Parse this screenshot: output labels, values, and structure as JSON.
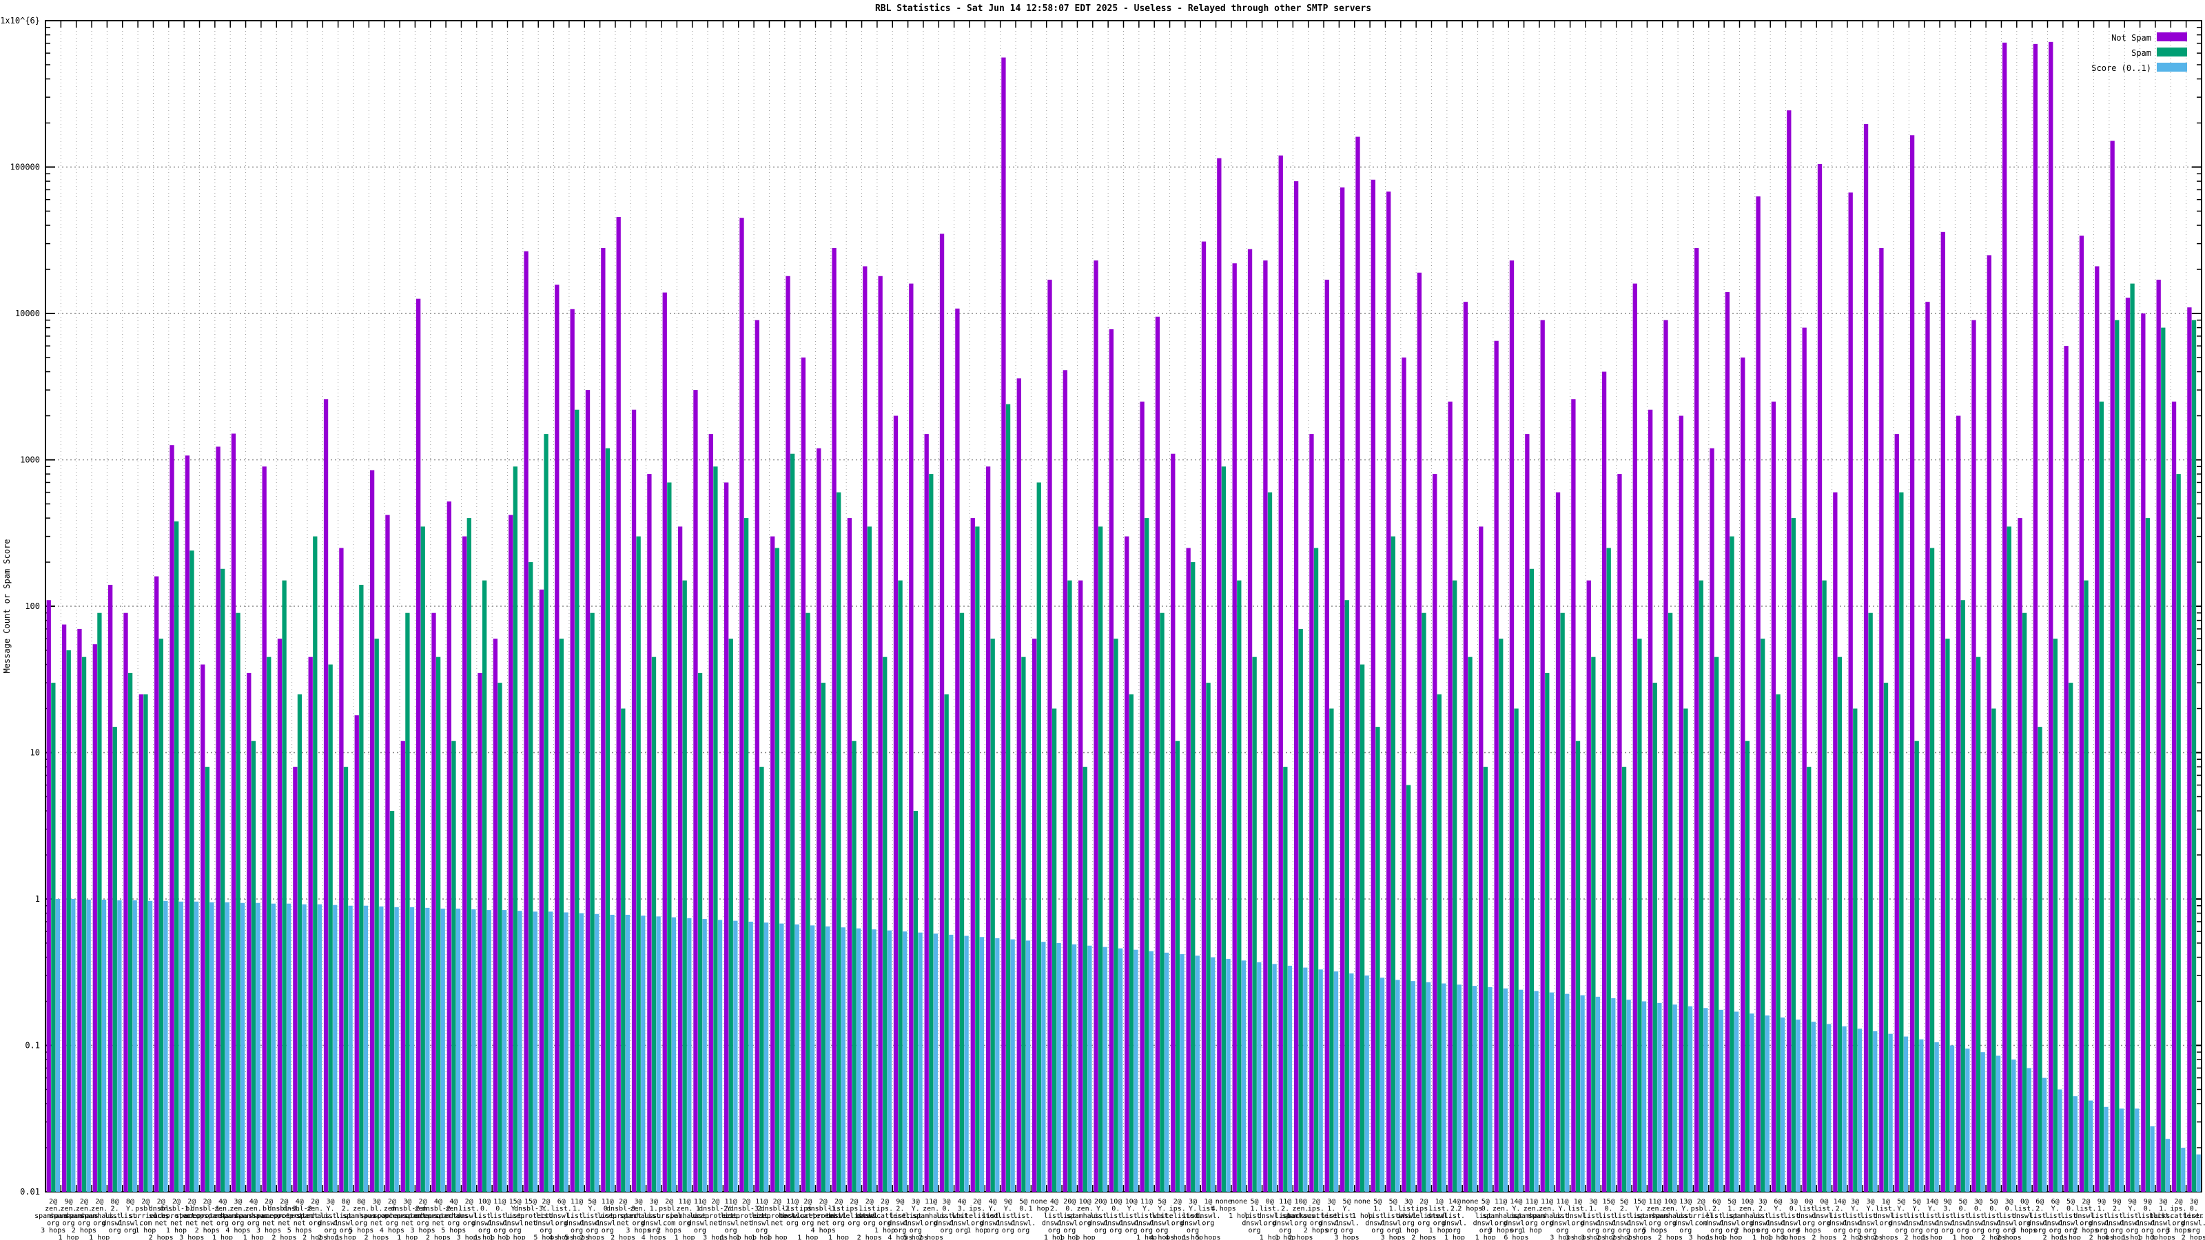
{
  "title": "RBL Statistics - Sat Jun 14 12:58:07 EDT 2025 - Useless - Relayed through other SMTP servers",
  "y_axis": {
    "label": "Message Count or Spam Score",
    "scale": "log",
    "min": 0.01,
    "max": 1000000,
    "tick_labels": [
      "1x10^{6}",
      "100000",
      "10000",
      "1000",
      "100",
      "10",
      "1",
      "0.1",
      "0.01"
    ]
  },
  "legend": {
    "position": "top-right",
    "items": [
      {
        "label": "Not Spam",
        "color": "#9400D3"
      },
      {
        "label": "Spam",
        "color": "#009E73"
      },
      {
        "label": "Score (0..1)",
        "color": "#56B4E9"
      }
    ]
  },
  "chart_data": {
    "type": "bar",
    "scale": "log",
    "ylim": [
      0.01,
      1000000
    ],
    "grid": true,
    "groups": [
      [
        "2@",
        "zen.spamhaus.org",
        "3 hops"
      ],
      [
        "9@",
        "zen.spamhaus.org",
        "1 hop"
      ],
      [
        "2@",
        "zen.spamhaus.org",
        "2 hops"
      ],
      [
        "2@",
        "zen.spamhaus.org",
        "1 hop"
      ],
      [
        "8@",
        "2.list.dnswl.org",
        ""
      ],
      [
        "8@",
        "Y.list.dnswl.org",
        ""
      ],
      [
        "2@",
        "psbl.surriel.com",
        "1 hop"
      ],
      [
        "2@",
        "dnsbl.sorbs.net",
        "2 hops"
      ],
      [
        "2@",
        "dnsbl-1.uceprotect.net",
        "1 hop"
      ],
      [
        "2@",
        "bl.spamcop.net",
        "3 hops"
      ],
      [
        "2@",
        "dnsbl-1.uceprotect.net",
        "2 hops"
      ],
      [
        "4@",
        "zen.spamhaus.org",
        "1 hop"
      ],
      [
        "3@",
        "zen.spamhaus.org",
        "4 hops"
      ],
      [
        "4@",
        "zen.spamhaus.org",
        "1 hop"
      ],
      [
        "2@",
        "bl.spamcop.net",
        "3 hops"
      ],
      [
        "2@",
        "dnsbl-3.uceprotect.net",
        "2 hops"
      ],
      [
        "4@",
        "dnsbl-2.uceprotect.net",
        "5 hops"
      ],
      [
        "2@",
        "zen.spamhaus.org",
        "2 hops"
      ],
      [
        "3@",
        "Y.list.dnswl.org",
        "2 hops"
      ],
      [
        "8@",
        "2.list.dnswl.org",
        "1 hop"
      ],
      [
        "8@",
        "zen.spamhaus.org",
        "5 hops"
      ],
      [
        "3@",
        "bl.spamcop.net",
        "2 hops"
      ],
      [
        "2@",
        "zen.spamhaus.org",
        "4 hops"
      ],
      [
        "3@",
        "dnsbl-2.uceprotect.net",
        "1 hop"
      ],
      [
        "2@",
        "zen.spamhaus.org",
        "3 hops"
      ],
      [
        "4@",
        "dnsbl-2.uceprotect.net",
        "2 hops"
      ],
      [
        "4@",
        "zen.spamhaus.org",
        "5 hops"
      ],
      [
        "2@",
        "list.dnswl.org",
        "3 hops"
      ],
      [
        "10@",
        "0.list.dnswl.org",
        "1 hop"
      ],
      [
        "11@",
        "0.list.dnswl.org",
        "1 hop"
      ],
      [
        "15@",
        "Y.list.dnswl.org",
        "1 hop"
      ],
      [
        "15@",
        "dnsbl-3.uceprotect.net",
        ""
      ],
      [
        "2@",
        "Y.list.dnswl.org",
        "5 hops"
      ],
      [
        "6@",
        "list.dnswl.org",
        "4 hops"
      ],
      [
        "11@",
        "1.list.dnswl.org",
        "5 hops"
      ],
      [
        "5@",
        "Y.list.dnswl.org",
        "2 hops"
      ],
      [
        "11@",
        "0.list.dnswl.org",
        ""
      ],
      [
        "2@",
        "dnsbl-3.uceprotect.net",
        "2 hops"
      ],
      [
        "3@",
        "zen.spamhaus.org",
        "3 hops"
      ],
      [
        "3@",
        "1.list.dnswl.org",
        "4 hops"
      ],
      [
        "2@",
        "psbl.surriel.com",
        "2 hops"
      ],
      [
        "11@",
        "zen.spamhaus.org",
        "1 hop"
      ],
      [
        "11@",
        "1.list.dnswl.org",
        ""
      ],
      [
        "2@",
        "dnsbl-2.uceprotect.net",
        "3 hops"
      ],
      [
        "11@",
        "Y.list.dnswl.org",
        "1 hop"
      ],
      [
        "2@",
        "dnsbl-3.uceprotect.net",
        "1 hop"
      ],
      [
        "11@",
        "2.list.dnswl.org",
        "1 hop"
      ],
      [
        "2@",
        "dnsbl-2.uceprotect.net",
        "1 hop"
      ],
      [
        "11@",
        "list.dnswl.org",
        ""
      ],
      [
        "2@",
        "ips.backscatterer.org",
        "1 hop"
      ],
      [
        "2@",
        "dnsbl-1.uceprotect.net",
        "4 hops"
      ],
      [
        "2@",
        "list.dnswl.org",
        "1 hop"
      ],
      [
        "2@",
        "ips.whitelisted.org",
        ""
      ],
      [
        "2@",
        "list.dnswl.org",
        "2 hops"
      ],
      [
        "2@",
        "ips.backscatterer.org",
        "1 hop"
      ],
      [
        "9@",
        "2.list.dnswl.org",
        "4 hops"
      ],
      [
        "3@",
        "Y.list.dnswl.org",
        "5 hops"
      ],
      [
        "11@",
        "zen.spamhaus.org",
        "2 hops"
      ],
      [
        "3@",
        "0.list.dnswl.org",
        ""
      ],
      [
        "4@",
        "3.list.dnswl.org",
        ""
      ],
      [
        "2@",
        "ips.whitelisted.org",
        "1 hop"
      ],
      [
        "4@",
        "Y.list.dnswl.org",
        ""
      ],
      [
        "9@",
        "Y.list.dnswl.org",
        ""
      ],
      [
        "5@",
        "0.list.dnswl.org",
        ""
      ],
      [
        "none",
        "",
        "1 hop"
      ],
      [
        "4@",
        "2.list.dnswl.org",
        "1 hop"
      ],
      [
        "20@",
        "0.list.dnswl.org",
        "1 hop"
      ],
      [
        "10@",
        "zen.spamhaus.org",
        "1 hop"
      ],
      [
        "20@",
        "Y.list.dnswl.org",
        ""
      ],
      [
        "10@",
        "0.list.dnswl.org",
        ""
      ],
      [
        "10@",
        "Y.list.dnswl.org",
        ""
      ],
      [
        "11@",
        "Y.list.dnswl.org",
        "1 hop"
      ],
      [
        "5@",
        "Y.list.dnswl.org",
        "4 hops"
      ],
      [
        "2@",
        "ips.whitelisted.org",
        "4 hops"
      ],
      [
        "3@",
        "Y.list.dnswl.org",
        "1 hop"
      ],
      [
        "1@",
        "list.dnswl.org",
        "5 hops"
      ],
      [
        "none",
        "",
        "4 hops"
      ],
      [
        "none",
        "",
        "1 hop"
      ],
      [
        "5@",
        "1.list.dnswl.org",
        ""
      ],
      [
        "0@",
        "list.dnswl.org",
        "1 hop"
      ],
      [
        "11@",
        "2.list.dnswl.org",
        "1 hop"
      ],
      [
        "10@",
        "zen.spamhaus.org",
        "2 hops"
      ],
      [
        "2@",
        "ips.backscatterer.org",
        "2 hops"
      ],
      [
        "3@",
        "1.list.dnswl.org",
        ""
      ],
      [
        "5@",
        "Y.list.dnswl.org",
        "3 hops"
      ],
      [
        "none",
        "",
        "1 hop"
      ],
      [
        "5@",
        "1.list.dnswl.org",
        ""
      ],
      [
        "5@",
        "1.list.dnswl.org",
        "3 hops"
      ],
      [
        "3@",
        "list.dnswl.org",
        "1 hop"
      ],
      [
        "2@",
        "ips.whitelisted.org",
        "2 hops"
      ],
      [
        "1@",
        "list.dnswl.org",
        "1 hop"
      ],
      [
        "14@",
        "2.list.dnswl.org",
        "1 hop"
      ],
      [
        "none",
        "",
        "2 hops"
      ],
      [
        "5@",
        "0.list.dnswl.org",
        "1 hop"
      ],
      [
        "11@",
        "zen.spamhaus.org",
        "3 hops"
      ],
      [
        "14@",
        "Y.list.dnswl.org",
        "6 hops"
      ],
      [
        "11@",
        "zen.spamhaus.org",
        "1 hop"
      ],
      [
        "11@",
        "zen.spamhaus.org",
        ""
      ],
      [
        "11@",
        "Y.list.dnswl.org",
        "3 hops"
      ],
      [
        "1@",
        "list.dnswl.org",
        "3 hops"
      ],
      [
        "3@",
        "1.list.dnswl.org",
        "3 hops"
      ],
      [
        "15@",
        "0.list.dnswl.org",
        "2 hops"
      ],
      [
        "5@",
        "2.list.dnswl.org",
        "2 hops"
      ],
      [
        "15@",
        "Y.list.dnswl.org",
        "2 hops"
      ],
      [
        "11@",
        "zen.spamhaus.org",
        "5 hops"
      ],
      [
        "10@",
        "zen.spamhaus.org",
        "2 hops"
      ],
      [
        "13@",
        "Y.list.dnswl.org",
        ""
      ],
      [
        "2@",
        "psbl.surriel.com",
        "3 hops"
      ],
      [
        "6@",
        "2.list.dnswl.org",
        "1 hop"
      ],
      [
        "5@",
        "1.list.dnswl.org",
        "1 hop"
      ],
      [
        "10@",
        "zen.spamhaus.org",
        "2 hops"
      ],
      [
        "3@",
        "2.list.dnswl.org",
        "1 hop"
      ],
      [
        "6@",
        "Y.list.dnswl.org",
        "1 hop"
      ],
      [
        "3@",
        "0.list.dnswl.org",
        "3 hops"
      ],
      [
        "0@",
        "list.dnswl.org",
        "4 hops"
      ],
      [
        "0@",
        "list.dnswl.org",
        "2 hops"
      ],
      [
        "14@",
        "2.list.dnswl.org",
        ""
      ],
      [
        "3@",
        "Y.list.dnswl.org",
        "2 hops"
      ],
      [
        "3@",
        "Y.list.dnswl.org",
        "2 hops"
      ],
      [
        "1@",
        "list.dnswl.org",
        "2 hops"
      ],
      [
        "5@",
        "Y.list.dnswl.org",
        ""
      ],
      [
        "5@",
        "Y.list.dnswl.org",
        "2 hops"
      ],
      [
        "14@",
        "Y.list.dnswl.org",
        "1 hop"
      ],
      [
        "9@",
        "3.list.dnswl.org",
        ""
      ],
      [
        "5@",
        "0.list.dnswl.org",
        "1 hop"
      ],
      [
        "3@",
        "0.list.dnswl.org",
        ""
      ],
      [
        "5@",
        "0.list.dnswl.org",
        "2 hops"
      ],
      [
        "3@",
        "0.list.dnswl.org",
        "2 hops"
      ],
      [
        "0@",
        "list.dnswl.org",
        "3 hops"
      ],
      [
        "6@",
        "2.list.dnswl.org",
        ""
      ],
      [
        "6@",
        "Y.list.dnswl.org",
        "2 hops"
      ],
      [
        "5@",
        "0.list.dnswl.org",
        "1 hop"
      ],
      [
        "2@",
        "list.dnswl.org",
        "2 hops"
      ],
      [
        "9@",
        "1.list.dnswl.org",
        "2 hops"
      ],
      [
        "9@",
        "2.list.dnswl.org",
        "4 hops"
      ],
      [
        "9@",
        "Y.list.dnswl.org",
        "1 hop"
      ],
      [
        "9@",
        "0.list.dnswl.org",
        "1 hop"
      ],
      [
        "3@",
        "1.list.dnswl.org",
        "3 hops"
      ],
      [
        "2@",
        "ips.backscatterer.org",
        "3 hops"
      ],
      [
        "3@",
        "0.list.dnswl.org",
        "2 hops"
      ]
    ],
    "series": [
      {
        "name": "Not Spam",
        "color": "#9400D3",
        "values": [
          110,
          75,
          70,
          55,
          140,
          90,
          25,
          160,
          1260,
          1070,
          40,
          1230,
          1510,
          35,
          900,
          60,
          8,
          45,
          2600,
          250,
          18,
          850,
          420,
          12,
          12600,
          90,
          520,
          300,
          35,
          60,
          420,
          26600,
          130,
          15700,
          10700,
          3000,
          28000,
          45600,
          2200,
          800,
          13900,
          350,
          3000,
          1500,
          700,
          45000,
          9000,
          300,
          18000,
          5000,
          1200,
          28000,
          400,
          21000,
          18000,
          2000,
          16000,
          1500,
          35000,
          10800,
          400,
          900,
          560000,
          3600,
          60,
          17000,
          4100,
          150,
          23000,
          7800,
          300,
          2500,
          9500,
          1100,
          250,
          31000,
          115000,
          22000,
          27500,
          23000,
          120000,
          80000,
          1500,
          17000,
          72500,
          161000,
          82000,
          68000,
          5000,
          19000,
          800,
          2500,
          12000,
          350,
          6500,
          23000,
          1500,
          9000,
          600,
          2600,
          150,
          4000,
          800,
          16000,
          2200,
          9000,
          2000,
          28000,
          1200,
          14000,
          5000,
          63000,
          2500,
          244000,
          8000,
          105000,
          600,
          67000,
          197000,
          28000,
          1500,
          165000,
          12000,
          36000,
          2000,
          9000,
          25000,
          708000,
          400,
          693000,
          716000,
          6000,
          34000,
          21000,
          151000,
          12800,
          10000,
          17000,
          2500,
          11000
        ]
      },
      {
        "name": "Spam",
        "color": "#009E73",
        "values": [
          30,
          50,
          45,
          90,
          15,
          35,
          25,
          60,
          380,
          240,
          8,
          180,
          90,
          12,
          45,
          150,
          25,
          300,
          40,
          8,
          140,
          60,
          4,
          90,
          350,
          45,
          12,
          400,
          150,
          30,
          900,
          200,
          1500,
          60,
          2200,
          90,
          1200,
          20,
          300,
          45,
          700,
          150,
          35,
          900,
          60,
          400,
          8,
          250,
          1100,
          90,
          30,
          600,
          12,
          350,
          45,
          150,
          4,
          800,
          25,
          90,
          350,
          60,
          2400,
          45,
          700,
          20,
          150,
          8,
          350,
          60,
          25,
          400,
          90,
          12,
          200,
          30,
          900,
          150,
          45,
          600,
          8,
          70,
          250,
          20,
          110,
          40,
          15,
          300,
          6,
          90,
          25,
          150,
          45,
          8,
          60,
          20,
          180,
          35,
          90,
          12,
          45,
          250,
          8,
          60,
          30,
          90,
          20,
          150,
          45,
          300,
          12,
          60,
          25,
          400,
          8,
          150,
          45,
          20,
          90,
          30,
          600,
          12,
          250,
          60,
          110,
          45,
          20,
          350,
          90,
          15,
          60,
          30,
          150,
          2500,
          9000,
          16000,
          400,
          8000,
          800,
          9000
        ]
      },
      {
        "name": "Score (0..1)",
        "color": "#56B4E9",
        "values": [
          1.0,
          1.0,
          0.99,
          0.99,
          0.98,
          0.98,
          0.97,
          0.97,
          0.96,
          0.96,
          0.95,
          0.95,
          0.94,
          0.94,
          0.93,
          0.93,
          0.92,
          0.92,
          0.91,
          0.9,
          0.9,
          0.89,
          0.88,
          0.88,
          0.87,
          0.86,
          0.86,
          0.85,
          0.84,
          0.84,
          0.83,
          0.82,
          0.82,
          0.81,
          0.8,
          0.79,
          0.78,
          0.78,
          0.77,
          0.76,
          0.75,
          0.74,
          0.73,
          0.72,
          0.71,
          0.7,
          0.69,
          0.68,
          0.67,
          0.66,
          0.65,
          0.64,
          0.63,
          0.62,
          0.61,
          0.6,
          0.59,
          0.58,
          0.57,
          0.56,
          0.55,
          0.54,
          0.53,
          0.52,
          0.51,
          0.5,
          0.49,
          0.48,
          0.47,
          0.46,
          0.45,
          0.44,
          0.43,
          0.42,
          0.41,
          0.4,
          0.39,
          0.38,
          0.37,
          0.36,
          0.35,
          0.34,
          0.33,
          0.32,
          0.31,
          0.3,
          0.29,
          0.28,
          0.275,
          0.27,
          0.265,
          0.26,
          0.255,
          0.25,
          0.245,
          0.24,
          0.235,
          0.23,
          0.225,
          0.22,
          0.215,
          0.21,
          0.205,
          0.2,
          0.195,
          0.19,
          0.185,
          0.18,
          0.175,
          0.17,
          0.165,
          0.16,
          0.155,
          0.15,
          0.145,
          0.14,
          0.135,
          0.13,
          0.125,
          0.12,
          0.115,
          0.11,
          0.105,
          0.1,
          0.095,
          0.09,
          0.085,
          0.08,
          0.07,
          0.06,
          0.05,
          0.045,
          0.042,
          0.038,
          0.037,
          0.037,
          0.028,
          0.023,
          0.02,
          0.018
        ]
      }
    ]
  }
}
